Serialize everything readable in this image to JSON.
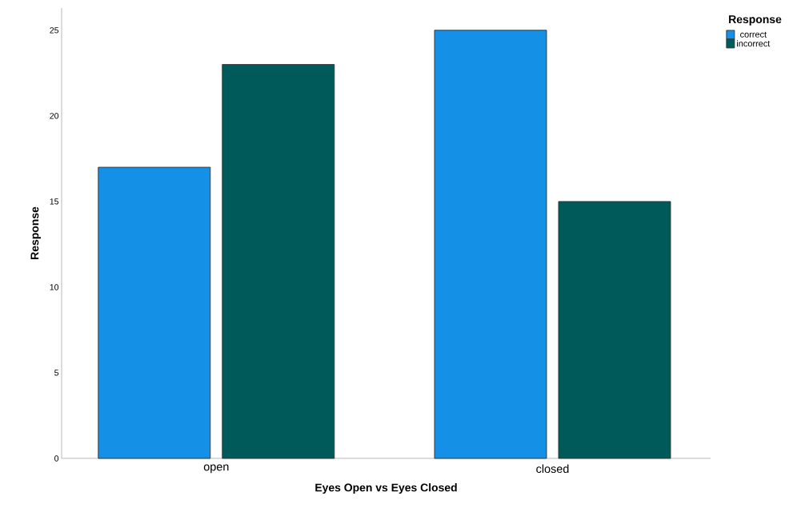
{
  "chart_data": {
    "type": "bar",
    "xlabel": "Eyes Open vs Eyes Closed",
    "ylabel": "Response",
    "legend_title": "Response",
    "legend": "top right",
    "categories": [
      "open",
      "closed"
    ],
    "series": [
      {
        "name": "correct",
        "color": "#1490e6",
        "values": [
          17,
          25
        ]
      },
      {
        "name": "incorrect",
        "color": "#005a5a",
        "values": [
          23,
          15
        ]
      }
    ],
    "ylim": [
      0,
      26.3
    ],
    "yticks": [
      0,
      5,
      10,
      15,
      20,
      25
    ],
    "grid": false
  }
}
